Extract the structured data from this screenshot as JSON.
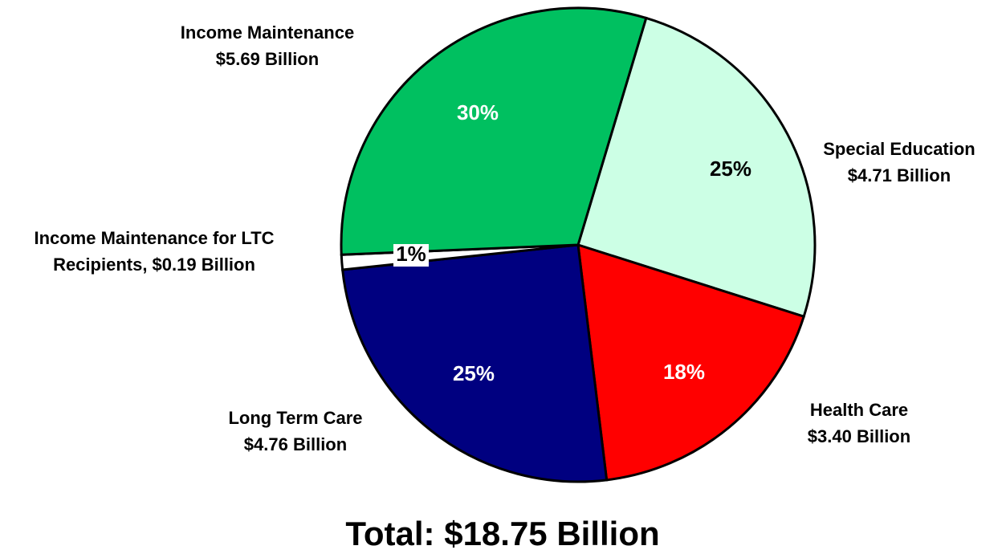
{
  "chart_data": {
    "type": "pie",
    "categories": [
      [
        "Special Education",
        "$4.71 Billion"
      ],
      [
        "Health Care",
        "$3.40 Billion"
      ],
      [
        "Long Term Care",
        "$4.76 Billion"
      ],
      [
        "Income Maintenance for LTC",
        "Recipients, $0.19 Billion"
      ],
      [
        "Income Maintenance",
        "$5.69 Billion"
      ]
    ],
    "values": [
      25,
      18,
      25,
      1,
      30
    ],
    "value_labels": [
      "25%",
      "18%",
      "25%",
      "1%",
      "30%"
    ],
    "colors": [
      "#ccffe5",
      "#ff0000",
      "#000080",
      "#ffffff",
      "#00c060"
    ],
    "annotation": "Total: $18.75 Billion"
  }
}
